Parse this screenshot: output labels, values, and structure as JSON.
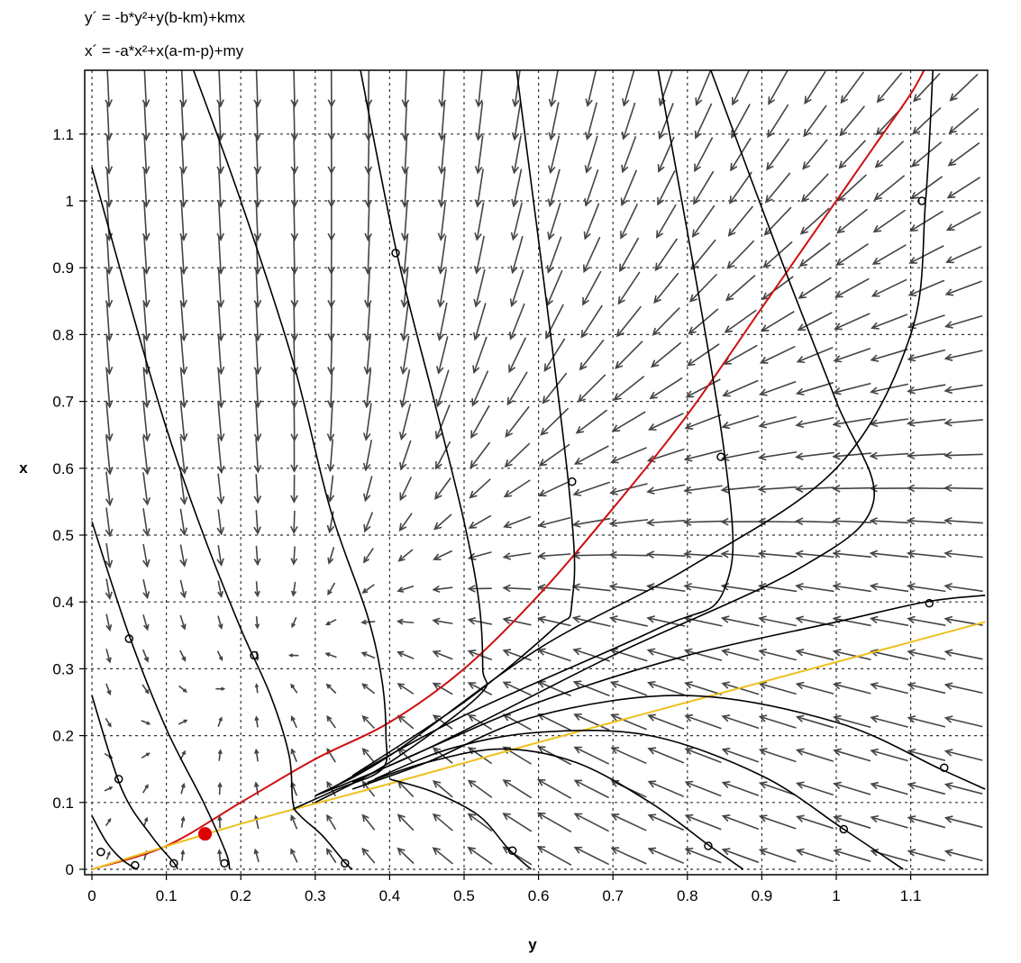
{
  "equations": {
    "y_prime": "y´ = -b*y²+y(b-km)+kmx",
    "x_prime": "x´ = -a*x²+x(a-m-p)+my"
  },
  "chart_data": {
    "type": "phase-portrait",
    "xlabel": "y",
    "ylabel": "x",
    "xlim": [
      -0.01,
      1.2
    ],
    "ylim": [
      -0.01,
      1.2
    ],
    "grid": true,
    "xticks": [
      "0",
      "0.1",
      "0.2",
      "0.3",
      "0.4",
      "0.5",
      "0.6",
      "0.7",
      "0.8",
      "0.9",
      "1",
      "1.1"
    ],
    "yticks": [
      "0",
      "0.1",
      "0.2",
      "0.3",
      "0.4",
      "0.5",
      "0.6",
      "0.7",
      "0.8",
      "0.9",
      "1",
      "1.1"
    ],
    "equilibrium": {
      "y": 0.152,
      "x": 0.053,
      "color": "#dd0000"
    },
    "nullclines": [
      {
        "color": "#cc1111",
        "points": [
          [
            0,
            0
          ],
          [
            0.1,
            0.035
          ],
          [
            0.2,
            0.1
          ],
          [
            0.3,
            0.165
          ],
          [
            0.4,
            0.22
          ],
          [
            0.5,
            0.3
          ],
          [
            0.6,
            0.41
          ],
          [
            0.7,
            0.54
          ],
          [
            0.8,
            0.68
          ],
          [
            0.9,
            0.84
          ],
          [
            1.0,
            1.0
          ],
          [
            1.05,
            1.08
          ],
          [
            1.1,
            1.16
          ],
          [
            1.12,
            1.2
          ]
        ]
      },
      {
        "color": "#eec020",
        "points": [
          [
            0,
            0
          ],
          [
            0.2,
            0.068
          ],
          [
            0.4,
            0.128
          ],
          [
            0.6,
            0.19
          ],
          [
            0.8,
            0.25
          ],
          [
            1.0,
            0.31
          ],
          [
            1.2,
            0.37
          ]
        ]
      }
    ],
    "arrow_color": "#444444",
    "trajectories": [
      {
        "points": [
          [
            0,
            0.08
          ],
          [
            0.02,
            0.04
          ],
          [
            0.04,
            0.015
          ],
          [
            0.06,
            0
          ]
        ],
        "markers": [
          [
            0.012,
            0.026
          ],
          [
            0.058,
            0.006
          ]
        ]
      },
      {
        "points": [
          [
            0,
            0.26
          ],
          [
            0.04,
            0.12
          ],
          [
            0.08,
            0.05
          ],
          [
            0.11,
            0.01
          ],
          [
            0.115,
            0
          ]
        ],
        "markers": [
          [
            0.036,
            0.135
          ],
          [
            0.11,
            0.009
          ]
        ]
      },
      {
        "points": [
          [
            0,
            0.52
          ],
          [
            0.05,
            0.35
          ],
          [
            0.1,
            0.21
          ],
          [
            0.15,
            0.1
          ],
          [
            0.18,
            0.025
          ],
          [
            0.185,
            0
          ]
        ],
        "markers": [
          [
            0.05,
            0.345
          ],
          [
            0.178,
            0.009
          ]
        ]
      },
      {
        "points": [
          [
            0,
            1.05
          ],
          [
            0.05,
            0.85
          ],
          [
            0.1,
            0.66
          ],
          [
            0.15,
            0.5
          ],
          [
            0.2,
            0.36
          ],
          [
            0.24,
            0.26
          ],
          [
            0.265,
            0.17
          ],
          [
            0.27,
            0.1
          ],
          [
            0.28,
            0.08
          ],
          [
            0.31,
            0.05
          ],
          [
            0.34,
            0.01
          ],
          [
            0.35,
            0
          ]
        ],
        "markers": [
          [
            0.218,
            0.32
          ],
          [
            0.34,
            0.009
          ]
        ]
      },
      {
        "points": [
          [
            0.135,
            1.2
          ],
          [
            0.2,
            1.0
          ],
          [
            0.27,
            0.76
          ],
          [
            0.32,
            0.54
          ],
          [
            0.37,
            0.38
          ],
          [
            0.39,
            0.28
          ],
          [
            0.395,
            0.2
          ],
          [
            0.39,
            0.15
          ],
          [
            0.33,
            0.12
          ],
          [
            0.27,
            0.09
          ]
        ]
      },
      {
        "points": [
          [
            0.4,
            0.135
          ],
          [
            0.46,
            0.115
          ],
          [
            0.52,
            0.08
          ],
          [
            0.56,
            0.03
          ],
          [
            0.59,
            0
          ]
        ],
        "markers": [
          [
            0.565,
            0.028
          ]
        ]
      },
      {
        "points": [
          [
            0.36,
            1.2
          ],
          [
            0.41,
            0.92
          ],
          [
            0.46,
            0.7
          ],
          [
            0.5,
            0.52
          ],
          [
            0.52,
            0.4
          ],
          [
            0.525,
            0.3
          ],
          [
            0.52,
            0.26
          ],
          [
            0.4,
            0.16
          ],
          [
            0.3,
            0.1
          ]
        ],
        "markers": [
          [
            0.408,
            0.922
          ]
        ]
      },
      {
        "points": [
          [
            0.57,
            1.2
          ],
          [
            0.64,
            0.58
          ],
          [
            0.645,
            0.4
          ],
          [
            0.62,
            0.36
          ],
          [
            0.5,
            0.25
          ],
          [
            0.35,
            0.14
          ]
        ],
        "markers": [
          [
            0.645,
            0.58
          ]
        ]
      },
      {
        "points": [
          [
            0.76,
            1.2
          ],
          [
            0.85,
            0.62
          ],
          [
            0.85,
            0.42
          ],
          [
            0.76,
            0.36
          ],
          [
            0.5,
            0.23
          ],
          [
            0.32,
            0.12
          ]
        ],
        "markers": [
          [
            0.845,
            0.617
          ]
        ]
      },
      {
        "points": [
          [
            0.83,
            1.2
          ],
          [
            0.93,
            0.9
          ],
          [
            1.0,
            0.7
          ],
          [
            1.05,
            0.55
          ],
          [
            0.95,
            0.45
          ],
          [
            0.7,
            0.32
          ],
          [
            0.45,
            0.18
          ],
          [
            0.3,
            0.11
          ]
        ]
      },
      {
        "points": [
          [
            1.13,
            1.2
          ],
          [
            1.12,
            1.0
          ],
          [
            1.1,
            0.8
          ],
          [
            1.0,
            0.6
          ],
          [
            0.8,
            0.45
          ],
          [
            0.6,
            0.33
          ],
          [
            0.4,
            0.17
          ],
          [
            0.3,
            0.11
          ]
        ],
        "markers": [
          [
            1.115,
            1.0
          ]
        ]
      },
      {
        "points": [
          [
            1.2,
            0.41
          ],
          [
            1.12,
            0.4
          ],
          [
            1.0,
            0.37
          ],
          [
            0.8,
            0.32
          ],
          [
            0.6,
            0.25
          ],
          [
            0.45,
            0.18
          ],
          [
            0.35,
            0.13
          ]
        ],
        "markers": [
          [
            1.125,
            0.398
          ]
        ]
      },
      {
        "points": [
          [
            1.2,
            0.12
          ],
          [
            1.14,
            0.15
          ],
          [
            1.0,
            0.22
          ],
          [
            0.8,
            0.26
          ],
          [
            0.6,
            0.23
          ],
          [
            0.45,
            0.16
          ],
          [
            0.35,
            0.12
          ]
        ],
        "markers": [
          [
            1.145,
            0.152
          ]
        ]
      },
      {
        "points": [
          [
            1.09,
            0
          ],
          [
            1.01,
            0.06
          ],
          [
            0.9,
            0.14
          ],
          [
            0.75,
            0.2
          ],
          [
            0.6,
            0.205
          ],
          [
            0.48,
            0.18
          ],
          [
            0.38,
            0.135
          ]
        ],
        "markers": [
          [
            1.01,
            0.06
          ]
        ]
      },
      {
        "points": [
          [
            0.875,
            0
          ],
          [
            0.83,
            0.035
          ],
          [
            0.75,
            0.1
          ],
          [
            0.65,
            0.16
          ],
          [
            0.55,
            0.18
          ],
          [
            0.45,
            0.16
          ],
          [
            0.37,
            0.13
          ]
        ],
        "markers": [
          [
            0.828,
            0.035
          ]
        ]
      }
    ]
  }
}
